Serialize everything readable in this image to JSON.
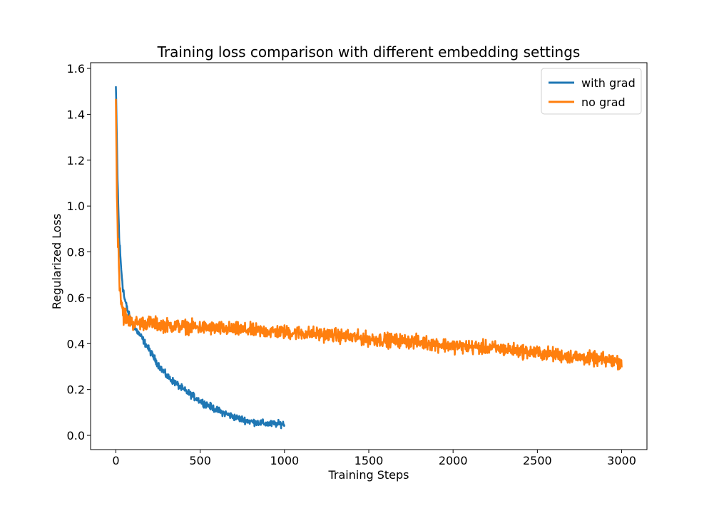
{
  "chart_data": {
    "type": "line",
    "title": "Training loss comparison with different embedding settings",
    "xlabel": "Training Steps",
    "ylabel": "Regularized Loss",
    "xlim": [
      -150,
      3150
    ],
    "ylim": [
      -0.062,
      1.625
    ],
    "xticks": [
      "0",
      "500",
      "1000",
      "1500",
      "2000",
      "2500",
      "3000"
    ],
    "xtick_values": [
      0,
      500,
      1000,
      1500,
      2000,
      2500,
      3000
    ],
    "yticks": [
      "0.0",
      "0.2",
      "0.4",
      "0.6",
      "0.8",
      "1.0",
      "1.2",
      "1.4",
      "1.6"
    ],
    "ytick_values": [
      0.0,
      0.2,
      0.4,
      0.6,
      0.8,
      1.0,
      1.2,
      1.4,
      1.6
    ],
    "grid": false,
    "legend": "top-right",
    "series": [
      {
        "name": "with grad",
        "color": "#1f77b4",
        "noise": 0.022,
        "x": [
          0,
          5,
          10,
          15,
          20,
          30,
          40,
          50,
          75,
          100,
          150,
          200,
          250,
          300,
          400,
          500,
          600,
          700,
          800,
          900,
          1000
        ],
        "y": [
          1.52,
          1.32,
          1.12,
          0.98,
          0.86,
          0.74,
          0.66,
          0.6,
          0.53,
          0.48,
          0.43,
          0.37,
          0.31,
          0.26,
          0.2,
          0.15,
          0.11,
          0.08,
          0.06,
          0.05,
          0.05
        ]
      },
      {
        "name": "no grad",
        "color": "#ff7f0e",
        "noise": 0.045,
        "x": [
          0,
          5,
          10,
          15,
          20,
          30,
          40,
          50,
          75,
          100,
          150,
          200,
          300,
          500,
          750,
          1000,
          1250,
          1500,
          1750,
          2000,
          2250,
          2500,
          2750,
          3000
        ],
        "y": [
          1.45,
          1.12,
          0.92,
          0.8,
          0.7,
          0.6,
          0.55,
          0.52,
          0.5,
          0.49,
          0.49,
          0.49,
          0.48,
          0.47,
          0.46,
          0.45,
          0.44,
          0.42,
          0.41,
          0.39,
          0.38,
          0.36,
          0.34,
          0.32
        ]
      }
    ]
  }
}
